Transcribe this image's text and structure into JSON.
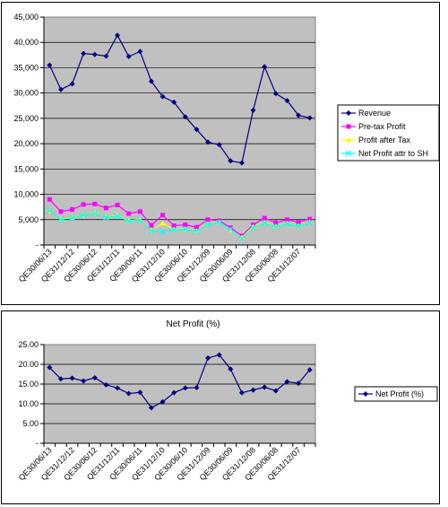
{
  "chart_data": [
    {
      "type": "line",
      "title": "",
      "xlabel": "",
      "ylabel": "",
      "ylim": [
        0,
        45000
      ],
      "yticks": [
        "-",
        "5,000",
        "10,000",
        "15,000",
        "20,000",
        "25,000",
        "30,000",
        "35,000",
        "40,000",
        "45,000"
      ],
      "xtick_labels": [
        "QE30/06/13",
        "QE31/12/12",
        "QE30/06/12",
        "QE31/12/11",
        "QE30/06/11",
        "QE31/12/10",
        "QE30/06/10",
        "QE31/12/09",
        "QE30/06/09",
        "QE31/12/08",
        "QE30/06/08",
        "QE31/12/07"
      ],
      "grid": true,
      "legend_position": "right",
      "categories": [
        "QE30/06/13",
        "",
        "QE31/12/12",
        "",
        "QE30/06/12",
        "",
        "QE31/12/11",
        "",
        "QE30/06/11",
        "",
        "QE31/12/10",
        "",
        "QE30/06/10",
        "",
        "QE31/12/09",
        "",
        "QE30/06/09",
        "",
        "QE31/12/08",
        "",
        "QE30/06/08",
        "",
        "QE31/12/07",
        ""
      ],
      "series": [
        {
          "name": "Revenue",
          "color": "#000080",
          "marker": "diamond",
          "values": [
            35500,
            30700,
            31800,
            37800,
            37600,
            37300,
            41400,
            37200,
            38200,
            32300,
            29300,
            28200,
            25300,
            22800,
            20300,
            19800,
            16600,
            16200,
            26600,
            35200,
            29900,
            28500,
            25600,
            25100
          ]
        },
        {
          "name": "Pre-tax Profit",
          "color": "#ff00ff",
          "marker": "square",
          "values": [
            9000,
            6600,
            7000,
            8000,
            8100,
            7300,
            7900,
            6200,
            6600,
            3900,
            5900,
            3800,
            4000,
            3500,
            5000,
            4800,
            3400,
            1800,
            4000,
            5300,
            4400,
            5000,
            4500,
            5100
          ]
        },
        {
          "name": "Profit after Tax",
          "color": "#ffff00",
          "marker": "triangle",
          "values": [
            6700,
            5100,
            5400,
            5900,
            6300,
            5500,
            5800,
            4800,
            5000,
            2900,
            4300,
            3100,
            3200,
            2800,
            4200,
            4500,
            3000,
            1500,
            3600,
            4400,
            3700,
            4300,
            3800,
            4500
          ]
        },
        {
          "name": "Net Profit attr to SH",
          "color": "#00ffff",
          "marker": "x",
          "values": [
            6800,
            5000,
            5300,
            5900,
            6200,
            5400,
            5700,
            4700,
            4900,
            2800,
            2600,
            3000,
            3100,
            2700,
            4100,
            4400,
            3100,
            1300,
            3400,
            4300,
            3600,
            4200,
            3700,
            4400
          ]
        }
      ]
    },
    {
      "type": "line",
      "title": "Net Profit (%)",
      "xlabel": "",
      "ylabel": "",
      "ylim": [
        0,
        25
      ],
      "yticks": [
        "-",
        "5.00",
        "10.00",
        "15.00",
        "20.00",
        "25.00"
      ],
      "xtick_labels": [
        "QE30/06/13",
        "QE31/12/12",
        "QE30/06/12",
        "QE31/12/11",
        "QE30/06/11",
        "QE31/12/10",
        "QE30/06/10",
        "QE31/12/09",
        "QE30/06/09",
        "QE31/12/08",
        "QE30/06/08",
        "QE31/12/07"
      ],
      "grid": true,
      "legend_position": "right",
      "categories": [
        "QE30/06/13",
        "",
        "QE31/12/12",
        "",
        "QE30/06/12",
        "",
        "QE31/12/11",
        "",
        "QE30/06/11",
        "",
        "QE31/12/10",
        "",
        "QE30/06/10",
        "",
        "QE31/12/09",
        "",
        "QE30/06/09",
        "",
        "QE31/12/08",
        "",
        "QE30/06/08",
        "",
        "QE31/12/07",
        ""
      ],
      "series": [
        {
          "name": "Net Profit (%)",
          "color": "#000080",
          "marker": "diamond",
          "values": [
            19.2,
            16.3,
            16.5,
            15.8,
            16.6,
            14.8,
            14.0,
            12.6,
            12.9,
            9.0,
            10.5,
            12.8,
            14.0,
            14.1,
            21.6,
            22.4,
            18.8,
            12.8,
            13.5,
            14.2,
            13.3,
            15.6,
            15.2,
            18.6
          ]
        }
      ]
    }
  ]
}
